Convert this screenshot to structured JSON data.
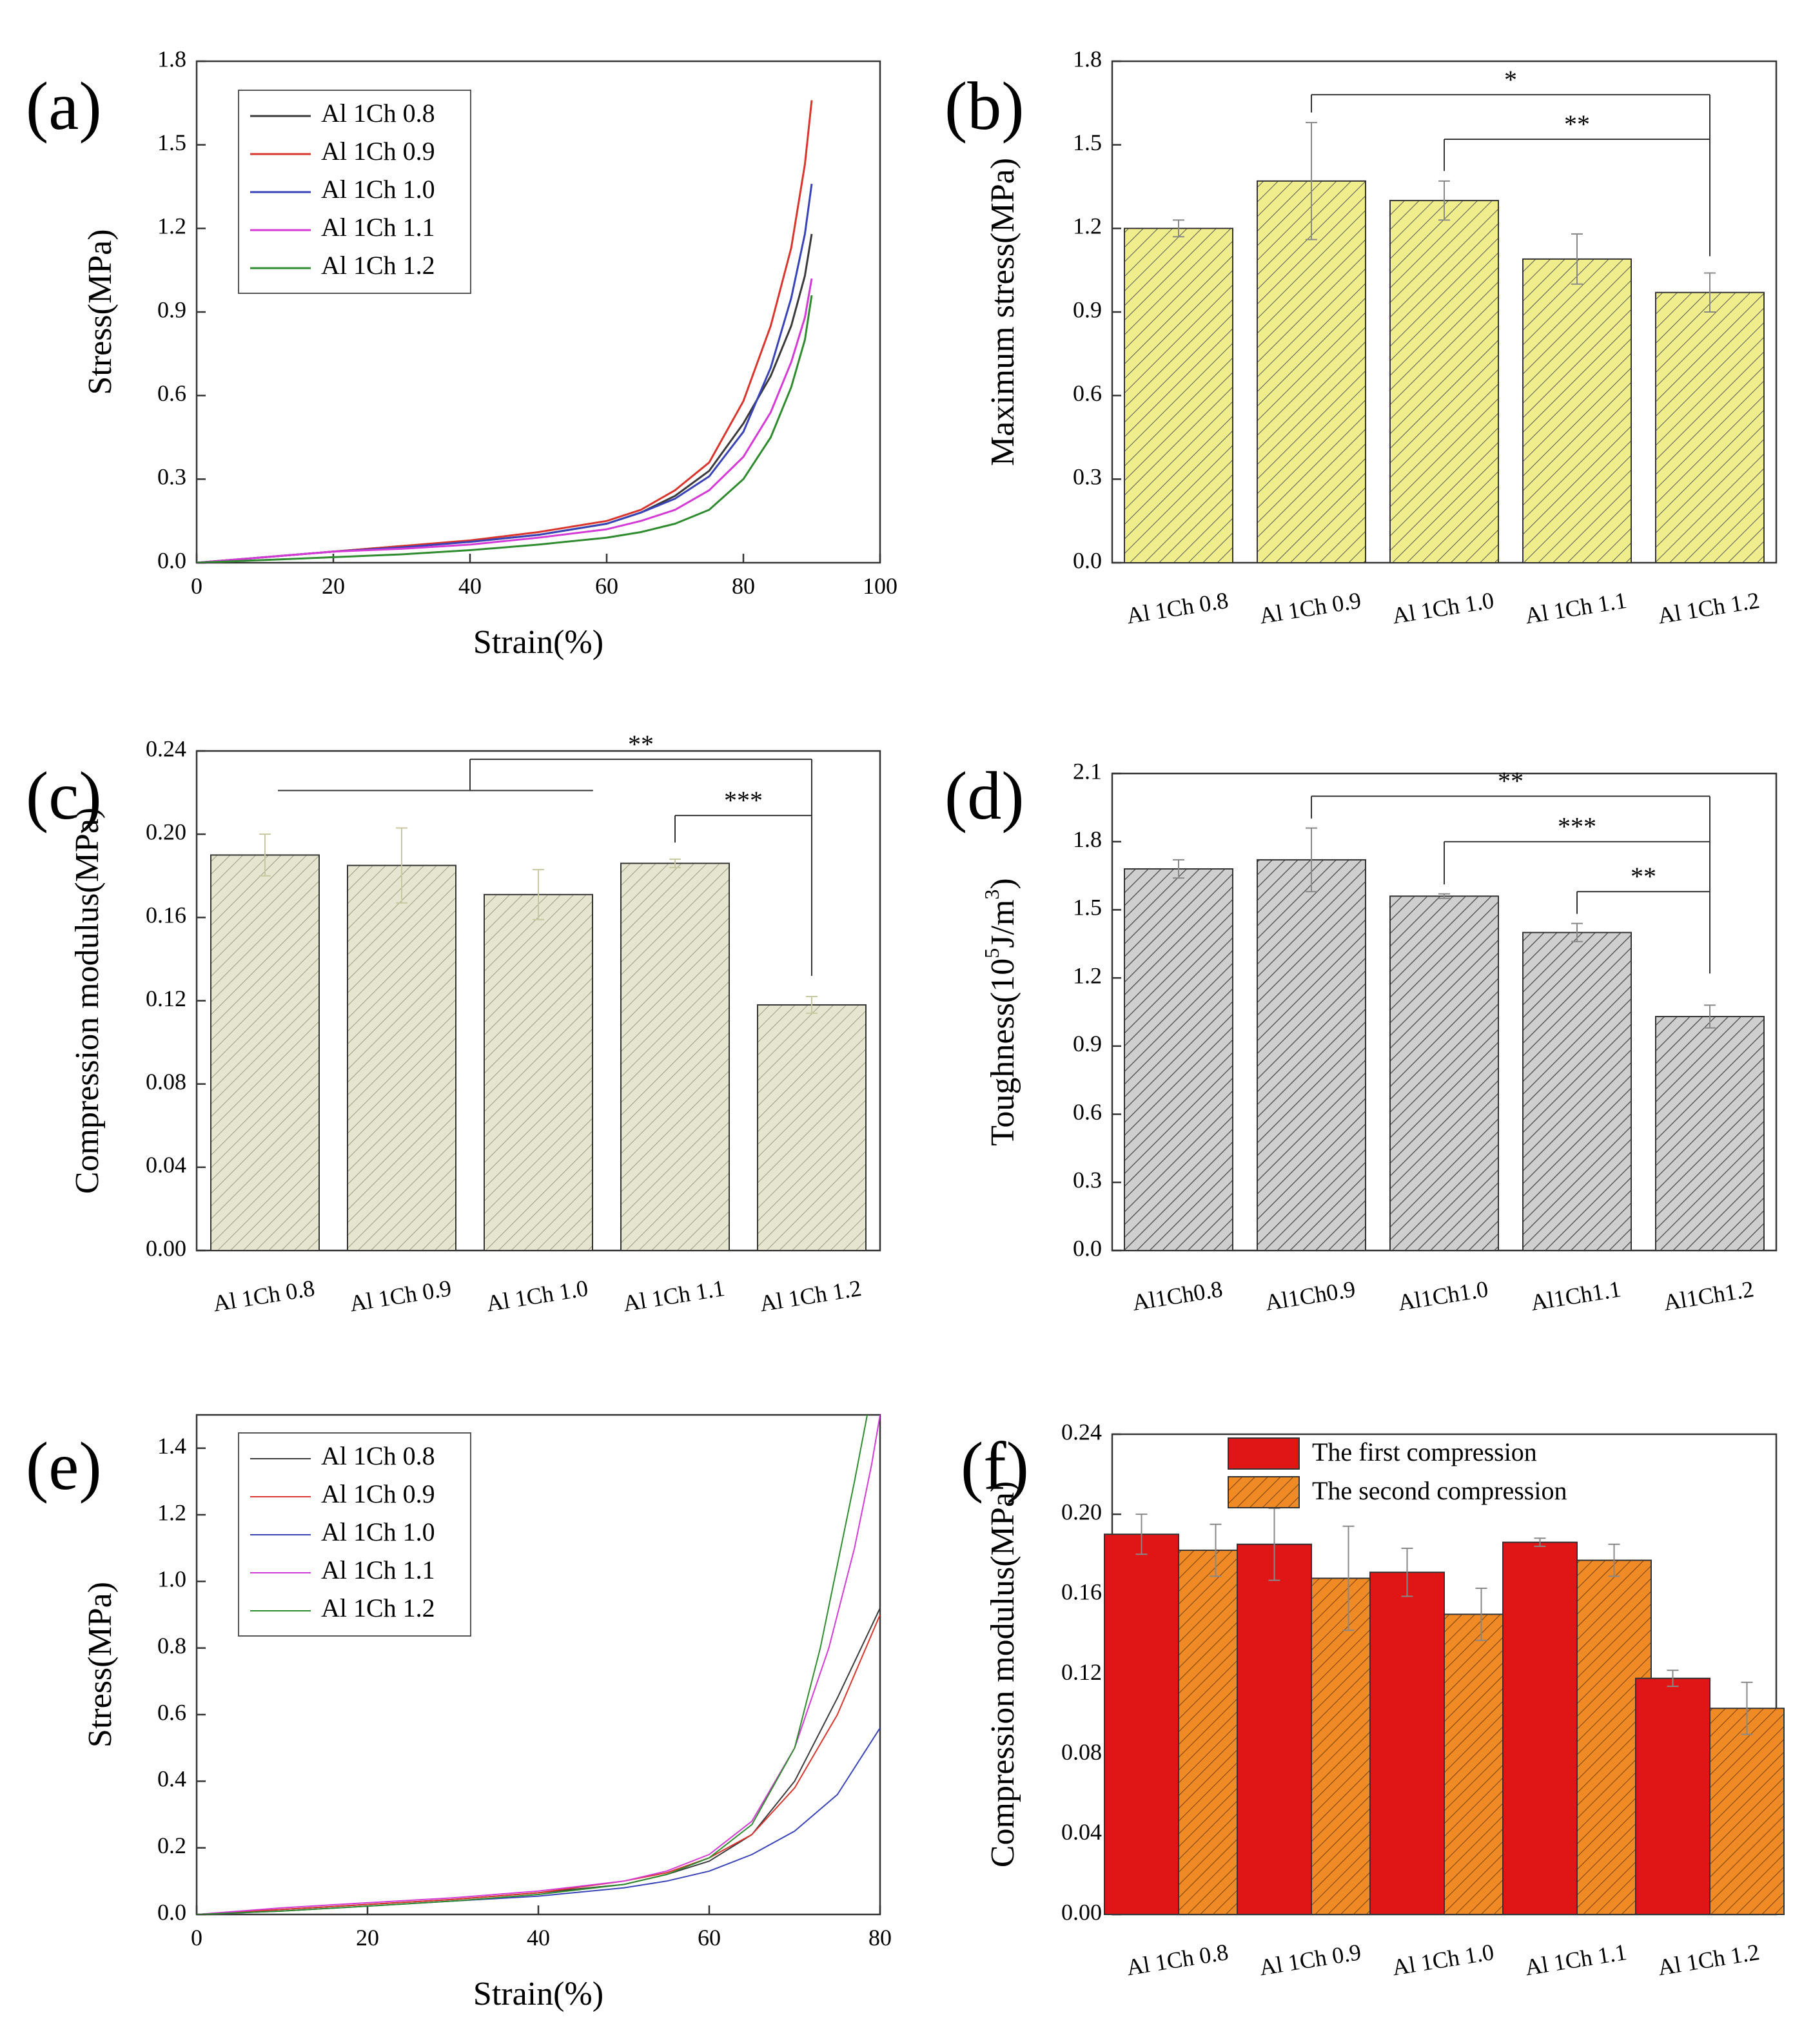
{
  "figure": {
    "colors": {
      "s08": "#3a3a3a",
      "s09": "#d9352c",
      "s10": "#3843b8",
      "s11": "#d43ad6",
      "s12": "#2e8b2e",
      "bar_b": "#f0ee8c",
      "bar_c": "#e6e5d0",
      "bar_d": "#c8c8c8",
      "bar_f1": "#e01515",
      "bar_f2": "#ef8a25",
      "err_c": "#c8c8a0"
    }
  },
  "chart_data": [
    {
      "id": "a",
      "type": "line",
      "panel_label": "(a)",
      "xlabel": "Strain(%)",
      "ylabel": "Stress(MPa)",
      "xlim": [
        0,
        100
      ],
      "ylim": [
        0,
        1.8
      ],
      "xticks": [
        "0",
        "20",
        "40",
        "60",
        "80",
        "100"
      ],
      "yticks": [
        "0.0",
        "0.3",
        "0.6",
        "0.9",
        "1.2",
        "1.5",
        "1.8"
      ],
      "legend_position": "top-left",
      "series": [
        {
          "name": "Al 1Ch 0.8",
          "color_key": "s08",
          "x": [
            0,
            10,
            20,
            30,
            40,
            50,
            60,
            65,
            70,
            75,
            80,
            84,
            87,
            89,
            90
          ],
          "y": [
            0,
            0.02,
            0.04,
            0.06,
            0.075,
            0.1,
            0.14,
            0.18,
            0.24,
            0.33,
            0.5,
            0.67,
            0.85,
            1.03,
            1.18
          ]
        },
        {
          "name": "Al 1Ch 0.9",
          "color_key": "s09",
          "x": [
            0,
            10,
            20,
            30,
            40,
            50,
            60,
            65,
            70,
            75,
            80,
            84,
            87,
            89,
            90
          ],
          "y": [
            0,
            0.02,
            0.04,
            0.06,
            0.08,
            0.11,
            0.15,
            0.19,
            0.26,
            0.36,
            0.58,
            0.85,
            1.13,
            1.43,
            1.66
          ]
        },
        {
          "name": "Al 1Ch 1.0",
          "color_key": "s10",
          "x": [
            0,
            10,
            20,
            30,
            40,
            50,
            60,
            65,
            70,
            75,
            80,
            84,
            87,
            89,
            90
          ],
          "y": [
            0,
            0.02,
            0.04,
            0.055,
            0.075,
            0.1,
            0.14,
            0.18,
            0.23,
            0.31,
            0.47,
            0.7,
            0.95,
            1.18,
            1.36
          ]
        },
        {
          "name": "Al 1Ch 1.1",
          "color_key": "s11",
          "x": [
            0,
            10,
            20,
            30,
            40,
            50,
            60,
            65,
            70,
            75,
            80,
            84,
            87,
            89,
            90
          ],
          "y": [
            0,
            0.02,
            0.04,
            0.05,
            0.065,
            0.09,
            0.12,
            0.15,
            0.19,
            0.26,
            0.38,
            0.54,
            0.72,
            0.88,
            1.02
          ]
        },
        {
          "name": "Al 1Ch 1.2",
          "color_key": "s12",
          "x": [
            0,
            10,
            20,
            30,
            40,
            50,
            60,
            65,
            70,
            75,
            80,
            84,
            87,
            89,
            90
          ],
          "y": [
            0,
            0.01,
            0.02,
            0.03,
            0.045,
            0.065,
            0.09,
            0.11,
            0.14,
            0.19,
            0.3,
            0.45,
            0.63,
            0.8,
            0.96
          ]
        }
      ]
    },
    {
      "id": "b",
      "type": "bar",
      "panel_label": "(b)",
      "ylabel": "Maximum stress(MPa)",
      "ylim": [
        0,
        1.8
      ],
      "yticks": [
        "0.0",
        "0.3",
        "0.6",
        "0.9",
        "1.2",
        "1.5",
        "1.8"
      ],
      "categories": [
        "Al 1Ch 0.8",
        "Al 1Ch 0.9",
        "Al 1Ch 1.0",
        "Al 1Ch 1.1",
        "Al 1Ch 1.2"
      ],
      "values": [
        1.2,
        1.37,
        1.3,
        1.09,
        0.97
      ],
      "errors": [
        0.03,
        0.21,
        0.07,
        0.09,
        0.07
      ],
      "fill_key": "bar_b",
      "significance": [
        {
          "from": 1,
          "to": 4,
          "label": "*",
          "y": 1.68,
          "drop_to": 1.1
        },
        {
          "from": 2,
          "to": 4,
          "label": "**",
          "y": 1.52,
          "drop_to": 1.1
        }
      ]
    },
    {
      "id": "c",
      "type": "bar",
      "panel_label": "(c)",
      "ylabel": "Compression modulus(MPa)",
      "ylim": [
        0,
        0.24
      ],
      "yticks": [
        "0.00",
        "0.04",
        "0.08",
        "0.12",
        "0.16",
        "0.20",
        "0.24"
      ],
      "categories": [
        "Al 1Ch 0.8",
        "Al 1Ch 0.9",
        "Al 1Ch 1.0",
        "Al 1Ch 1.1",
        "Al 1Ch 1.2"
      ],
      "values": [
        0.19,
        0.185,
        0.171,
        0.186,
        0.118
      ],
      "errors": [
        0.01,
        0.018,
        0.012,
        0.002,
        0.004
      ],
      "fill_key": "bar_c",
      "significance": [
        {
          "from": 1.5,
          "to": 4,
          "label": "**",
          "y": 0.236,
          "drop_to": 0.132,
          "group": [
            0,
            2.4
          ],
          "group_y": 0.221
        },
        {
          "from": 3,
          "to": 4,
          "label": "***",
          "y": 0.209,
          "drop_to": 0.132,
          "left_drop": 0.196
        }
      ]
    },
    {
      "id": "d",
      "type": "bar",
      "panel_label": "(d)",
      "ylabel_parts": [
        "Toughness(10",
        "5",
        "J/m",
        "3",
        ")"
      ],
      "ylim": [
        0,
        2.1
      ],
      "yticks": [
        "0.0",
        "0.3",
        "0.6",
        "0.9",
        "1.2",
        "1.5",
        "1.8",
        "2.1"
      ],
      "categories": [
        "Al1Ch0.8",
        "Al1Ch0.9",
        "Al1Ch1.0",
        "Al1Ch1.1",
        "Al1Ch1.2"
      ],
      "values": [
        1.68,
        1.72,
        1.56,
        1.4,
        1.03
      ],
      "errors": [
        0.04,
        0.14,
        0.01,
        0.04,
        0.05
      ],
      "fill_key": "bar_d",
      "significance": [
        {
          "from": 1,
          "to": 4,
          "label": "**",
          "y": 2.0,
          "drop_to": 1.22
        },
        {
          "from": 2,
          "to": 4,
          "label": "***",
          "y": 1.8,
          "drop_to": 1.22
        },
        {
          "from": 3,
          "to": 4,
          "label": "**",
          "y": 1.58,
          "drop_to": 1.22
        }
      ]
    },
    {
      "id": "e",
      "type": "line",
      "panel_label": "(e)",
      "xlabel": "Strain(%)",
      "ylabel": "Stress(MPa)",
      "xlim": [
        0,
        80
      ],
      "ylim": [
        0,
        1.5
      ],
      "xticks": [
        "0",
        "20",
        "40",
        "60",
        "80"
      ],
      "yticks": [
        "0.0",
        "0.2",
        "0.4",
        "0.6",
        "0.8",
        "1.0",
        "1.2",
        "1.4"
      ],
      "legend_position": "top-left",
      "series": [
        {
          "name": "Al 1Ch 0.8",
          "color_key": "s08",
          "x": [
            0,
            10,
            20,
            30,
            40,
            50,
            55,
            60,
            65,
            70,
            75,
            80
          ],
          "y": [
            0,
            0.015,
            0.03,
            0.045,
            0.065,
            0.09,
            0.12,
            0.16,
            0.24,
            0.4,
            0.65,
            0.92
          ]
        },
        {
          "name": "Al 1Ch 0.9",
          "color_key": "s09",
          "x": [
            0,
            10,
            20,
            30,
            40,
            50,
            55,
            60,
            65,
            70,
            75,
            80
          ],
          "y": [
            0,
            0.015,
            0.03,
            0.045,
            0.065,
            0.1,
            0.125,
            0.17,
            0.24,
            0.38,
            0.6,
            0.9
          ]
        },
        {
          "name": "Al 1Ch 1.0",
          "color_key": "s10",
          "x": [
            0,
            10,
            20,
            30,
            40,
            50,
            55,
            60,
            65,
            70,
            75,
            80
          ],
          "y": [
            0,
            0.01,
            0.025,
            0.04,
            0.055,
            0.08,
            0.1,
            0.13,
            0.18,
            0.25,
            0.36,
            0.56
          ]
        },
        {
          "name": "Al 1Ch 1.1",
          "color_key": "s11",
          "x": [
            0,
            10,
            20,
            30,
            40,
            50,
            55,
            60,
            65,
            70,
            74,
            77,
            79,
            80
          ],
          "y": [
            0,
            0.02,
            0.035,
            0.05,
            0.07,
            0.1,
            0.13,
            0.18,
            0.28,
            0.5,
            0.8,
            1.1,
            1.35,
            1.5
          ]
        },
        {
          "name": "Al 1Ch 1.2",
          "color_key": "s12",
          "x": [
            0,
            10,
            20,
            30,
            40,
            50,
            55,
            60,
            65,
            70,
            73,
            75,
            77,
            78.5
          ],
          "y": [
            0,
            0.01,
            0.025,
            0.04,
            0.06,
            0.09,
            0.12,
            0.17,
            0.27,
            0.5,
            0.8,
            1.05,
            1.3,
            1.5
          ]
        }
      ]
    },
    {
      "id": "f",
      "type": "bar",
      "panel_label": "(f)",
      "ylabel": "Compression modulus(MPa)",
      "ylim": [
        0,
        0.24
      ],
      "yticks": [
        "0.00",
        "0.04",
        "0.08",
        "0.12",
        "0.16",
        "0.20",
        "0.24"
      ],
      "categories": [
        "Al 1Ch 0.8",
        "Al 1Ch 0.9",
        "Al 1Ch 1.0",
        "Al 1Ch 1.1",
        "Al 1Ch 1.2"
      ],
      "legend_position": "top-center",
      "series": [
        {
          "name": "The first compression",
          "fill_key": "bar_f1",
          "values": [
            0.19,
            0.185,
            0.171,
            0.186,
            0.118
          ],
          "errors": [
            0.01,
            0.018,
            0.012,
            0.002,
            0.004
          ]
        },
        {
          "name": "The second compression",
          "fill_key": "bar_f2",
          "values": [
            0.182,
            0.168,
            0.15,
            0.177,
            0.103
          ],
          "errors": [
            0.013,
            0.026,
            0.013,
            0.008,
            0.013
          ]
        }
      ]
    }
  ]
}
